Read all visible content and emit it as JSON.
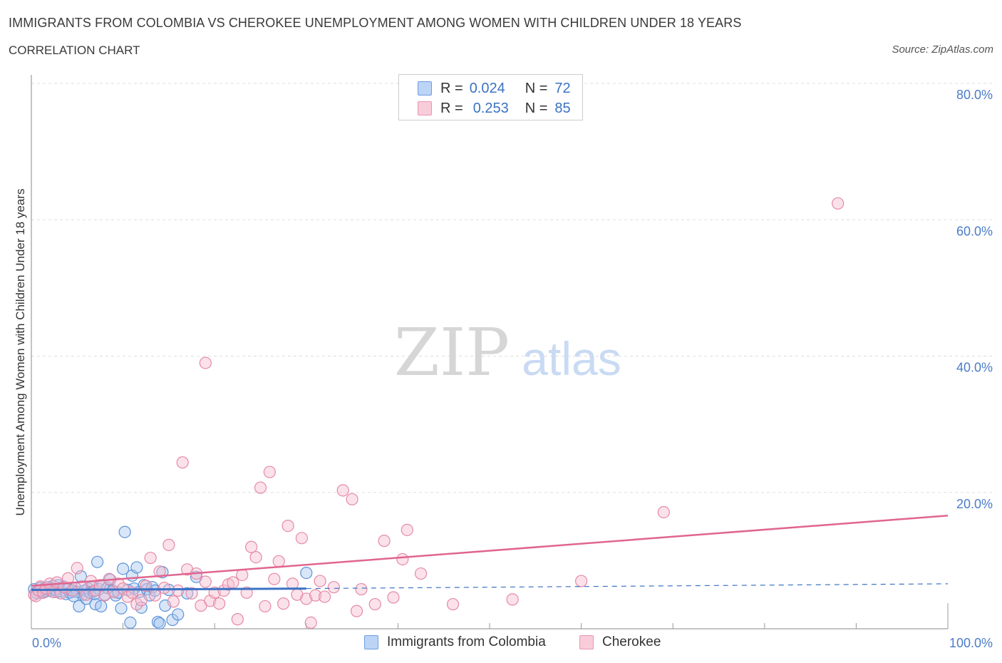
{
  "header": {
    "title": "IMMIGRANTS FROM COLOMBIA VS CHEROKEE UNEMPLOYMENT AMONG WOMEN WITH CHILDREN UNDER 18 YEARS",
    "subtitle": "CORRELATION CHART",
    "source": "Source: ZipAtlas.com"
  },
  "watermark": {
    "zip": "ZIP",
    "atlas": "atlas"
  },
  "legend": {
    "rows": [
      {
        "r_label": "R =",
        "r_value": "0.024",
        "n_label": "N =",
        "n_value": "72"
      },
      {
        "r_label": "R =",
        "r_value": "0.253",
        "n_label": "N =",
        "n_value": "85"
      }
    ],
    "bottom": [
      "Immigrants from Colombia",
      "Cherokee"
    ]
  },
  "colors": {
    "blue_fill": "#a9c8f0",
    "blue_stroke": "#5d93d8",
    "blue_line": "#3b72c4",
    "pink_fill": "#f6bfd0",
    "pink_stroke": "#e58aa6",
    "pink_line": "#e06590",
    "tick_text": "#4a7cc8"
  },
  "chart_data": {
    "type": "scatter",
    "title": "IMMIGRANTS FROM COLOMBIA VS CHEROKEE UNEMPLOYMENT AMONG WOMEN WITH CHILDREN UNDER 18 YEARS",
    "xlabel": "",
    "ylabel": "Unemployment Among Women with Children Under 18 years",
    "xlim": [
      0,
      100
    ],
    "ylim": [
      0,
      80
    ],
    "x_ticks": [
      "0.0%",
      "100.0%"
    ],
    "y_ticks": [
      {
        "value": 20,
        "label": "20.0%"
      },
      {
        "value": 40,
        "label": "40.0%"
      },
      {
        "value": 60,
        "label": "60.0%"
      },
      {
        "value": 80,
        "label": "80.0%"
      }
    ],
    "grid": true,
    "legend_position": "top-center",
    "series": [
      {
        "name": "Immigrants from Colombia",
        "R": 0.024,
        "N": 72,
        "trend": {
          "solid": [
            [
              0,
              5.7
            ],
            [
              30,
              5.9
            ]
          ],
          "dashed": [
            [
              30,
              5.9
            ],
            [
              100,
              6.6
            ]
          ]
        },
        "points": [
          [
            0.3,
            5.8
          ],
          [
            0.6,
            5.2
          ],
          [
            0.8,
            5.6
          ],
          [
            1.0,
            6.0
          ],
          [
            1.2,
            5.4
          ],
          [
            1.4,
            5.9
          ],
          [
            1.6,
            5.5
          ],
          [
            1.8,
            6.1
          ],
          [
            2.0,
            5.6
          ],
          [
            2.2,
            5.9
          ],
          [
            2.4,
            6.3
          ],
          [
            2.6,
            5.7
          ],
          [
            2.8,
            5.4
          ],
          [
            3.0,
            5.9
          ],
          [
            3.2,
            5.5
          ],
          [
            3.5,
            6.2
          ],
          [
            3.8,
            5.1
          ],
          [
            4.0,
            5.8
          ],
          [
            4.2,
            5.3
          ],
          [
            4.5,
            5.6
          ],
          [
            4.8,
            6.0
          ],
          [
            5.0,
            5.4
          ],
          [
            5.2,
            3.3
          ],
          [
            5.4,
            7.7
          ],
          [
            5.6,
            5.0
          ],
          [
            5.8,
            5.6
          ],
          [
            6.0,
            4.4
          ],
          [
            6.2,
            5.9
          ],
          [
            6.4,
            5.3
          ],
          [
            6.6,
            6.2
          ],
          [
            6.8,
            5.5
          ],
          [
            7.0,
            3.6
          ],
          [
            7.2,
            9.8
          ],
          [
            7.4,
            5.8
          ],
          [
            7.6,
            3.3
          ],
          [
            7.8,
            6.4
          ],
          [
            8.0,
            5.0
          ],
          [
            8.3,
            6.0
          ],
          [
            8.6,
            7.2
          ],
          [
            8.9,
            5.6
          ],
          [
            9.2,
            4.9
          ],
          [
            9.5,
            5.3
          ],
          [
            9.8,
            3.0
          ],
          [
            10.0,
            8.8
          ],
          [
            10.2,
            14.2
          ],
          [
            10.5,
            5.7
          ],
          [
            10.8,
            0.9
          ],
          [
            11.0,
            7.8
          ],
          [
            11.2,
            5.9
          ],
          [
            11.5,
            9.0
          ],
          [
            11.8,
            5.4
          ],
          [
            12.0,
            3.1
          ],
          [
            12.3,
            6.4
          ],
          [
            12.6,
            5.8
          ],
          [
            12.9,
            4.9
          ],
          [
            13.2,
            6.1
          ],
          [
            13.5,
            5.6
          ],
          [
            13.8,
            1.0
          ],
          [
            14.0,
            0.8
          ],
          [
            14.3,
            8.3
          ],
          [
            14.6,
            3.4
          ],
          [
            15.0,
            5.7
          ],
          [
            15.4,
            1.3
          ],
          [
            16.0,
            2.1
          ],
          [
            17.0,
            5.2
          ],
          [
            18.0,
            7.6
          ],
          [
            0.5,
            5.3
          ],
          [
            1.1,
            5.7
          ],
          [
            2.9,
            6.4
          ],
          [
            4.6,
            4.8
          ],
          [
            6.9,
            5.1
          ],
          [
            30.0,
            8.2
          ]
        ]
      },
      {
        "name": "Cherokee",
        "R": 0.253,
        "N": 85,
        "trend": {
          "solid": [
            [
              0,
              6.3
            ],
            [
              100,
              16.6
            ]
          ]
        },
        "points": [
          [
            0.3,
            5.0
          ],
          [
            0.5,
            4.8
          ],
          [
            0.8,
            5.6
          ],
          [
            1.0,
            6.2
          ],
          [
            1.3,
            5.3
          ],
          [
            1.6,
            5.9
          ],
          [
            2.0,
            6.6
          ],
          [
            2.4,
            5.4
          ],
          [
            2.8,
            6.8
          ],
          [
            3.2,
            5.2
          ],
          [
            3.6,
            6.1
          ],
          [
            4.0,
            7.4
          ],
          [
            4.5,
            5.6
          ],
          [
            5.0,
            8.9
          ],
          [
            5.5,
            6.2
          ],
          [
            6.0,
            5.0
          ],
          [
            6.5,
            7.0
          ],
          [
            7.0,
            5.6
          ],
          [
            7.5,
            6.4
          ],
          [
            8.0,
            4.9
          ],
          [
            8.5,
            7.3
          ],
          [
            9.0,
            5.4
          ],
          [
            9.5,
            6.6
          ],
          [
            10.0,
            5.9
          ],
          [
            10.5,
            4.7
          ],
          [
            11.0,
            5.3
          ],
          [
            11.5,
            3.6
          ],
          [
            12.0,
            4.2
          ],
          [
            12.5,
            6.3
          ],
          [
            13.0,
            10.4
          ],
          [
            13.5,
            4.9
          ],
          [
            14.0,
            8.4
          ],
          [
            14.5,
            6.0
          ],
          [
            15.0,
            12.3
          ],
          [
            15.5,
            4.0
          ],
          [
            16.0,
            5.6
          ],
          [
            16.5,
            24.4
          ],
          [
            17.0,
            8.7
          ],
          [
            17.5,
            5.2
          ],
          [
            18.0,
            8.1
          ],
          [
            18.5,
            3.4
          ],
          [
            19.0,
            6.9
          ],
          [
            19.5,
            4.1
          ],
          [
            20.0,
            5.3
          ],
          [
            20.5,
            3.7
          ],
          [
            21.0,
            5.6
          ],
          [
            21.5,
            6.5
          ],
          [
            22.0,
            6.8
          ],
          [
            22.5,
            1.4
          ],
          [
            23.0,
            7.9
          ],
          [
            23.5,
            5.3
          ],
          [
            24.0,
            12.0
          ],
          [
            24.5,
            10.5
          ],
          [
            25.0,
            20.7
          ],
          [
            25.5,
            3.3
          ],
          [
            26.0,
            23.0
          ],
          [
            26.5,
            7.3
          ],
          [
            27.0,
            9.9
          ],
          [
            27.5,
            3.7
          ],
          [
            28.0,
            15.1
          ],
          [
            28.5,
            6.6
          ],
          [
            29.0,
            5.0
          ],
          [
            29.5,
            13.3
          ],
          [
            30.0,
            4.4
          ],
          [
            30.5,
            0.9
          ],
          [
            31.0,
            4.9
          ],
          [
            31.5,
            7.0
          ],
          [
            32.0,
            4.7
          ],
          [
            33.0,
            6.1
          ],
          [
            34.0,
            20.3
          ],
          [
            35.0,
            19.0
          ],
          [
            35.5,
            2.6
          ],
          [
            36.0,
            5.8
          ],
          [
            37.5,
            3.6
          ],
          [
            38.5,
            12.9
          ],
          [
            39.5,
            4.6
          ],
          [
            40.5,
            10.2
          ],
          [
            41.0,
            14.5
          ],
          [
            42.5,
            8.1
          ],
          [
            46.0,
            3.6
          ],
          [
            52.5,
            4.3
          ],
          [
            60.0,
            7.0
          ],
          [
            69.0,
            17.1
          ],
          [
            88.0,
            62.4
          ],
          [
            19.0,
            39.0
          ]
        ]
      }
    ]
  }
}
